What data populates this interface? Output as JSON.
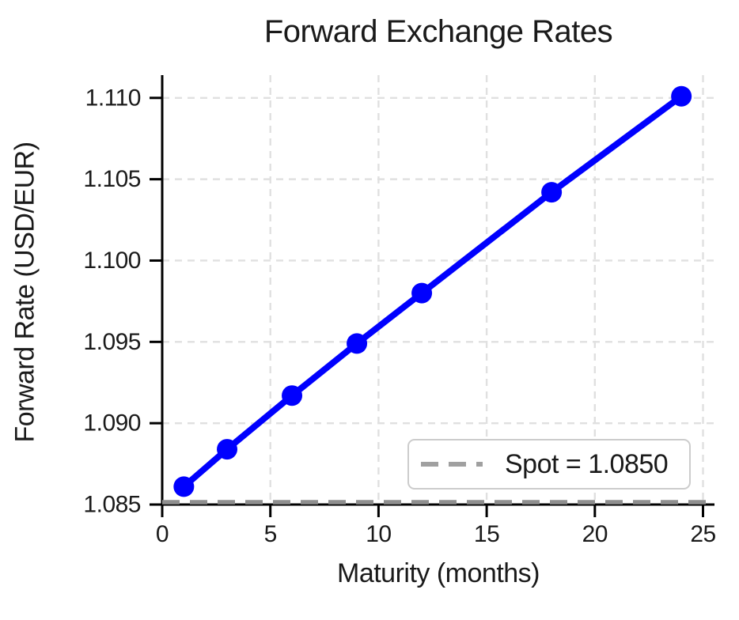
{
  "title": "Forward Exchange Rates",
  "chart_data": {
    "type": "line",
    "title": "Forward Exchange Rates",
    "xlabel": "Maturity (months)",
    "ylabel": "Forward Rate (USD/EUR)",
    "x": [
      1,
      3,
      6,
      9,
      12,
      18,
      24
    ],
    "y": [
      1.0861,
      1.0884,
      1.0917,
      1.0949,
      1.098,
      1.1042,
      1.1101
    ],
    "spot_line": {
      "value": 1.085,
      "label": "Spot = 1.0850"
    },
    "xticks": [
      0,
      5,
      10,
      15,
      20,
      25
    ],
    "xtick_labels": [
      "0",
      "5",
      "10",
      "15",
      "20",
      "25"
    ],
    "yticks": [
      1.085,
      1.09,
      1.095,
      1.1,
      1.105,
      1.11
    ],
    "ytick_labels": [
      "1.085",
      "1.090",
      "1.095",
      "1.100",
      "1.105",
      "1.110"
    ],
    "xlim": [
      0,
      25.53
    ],
    "ylim": [
      1.085,
      1.1114
    ],
    "grid": true,
    "grid_style": "dashed",
    "legend_position": "lower right",
    "colors": {
      "line": "#0000fe",
      "marker": "#0000fe",
      "spot_line": "#8f8f8f",
      "legend_sample": "#a0a0a0",
      "grid": "#e0e0e0",
      "spine": "#000000",
      "text": "#1a1a1a",
      "legend_border": "#cccccc",
      "legend_background": "#ffffff"
    }
  }
}
